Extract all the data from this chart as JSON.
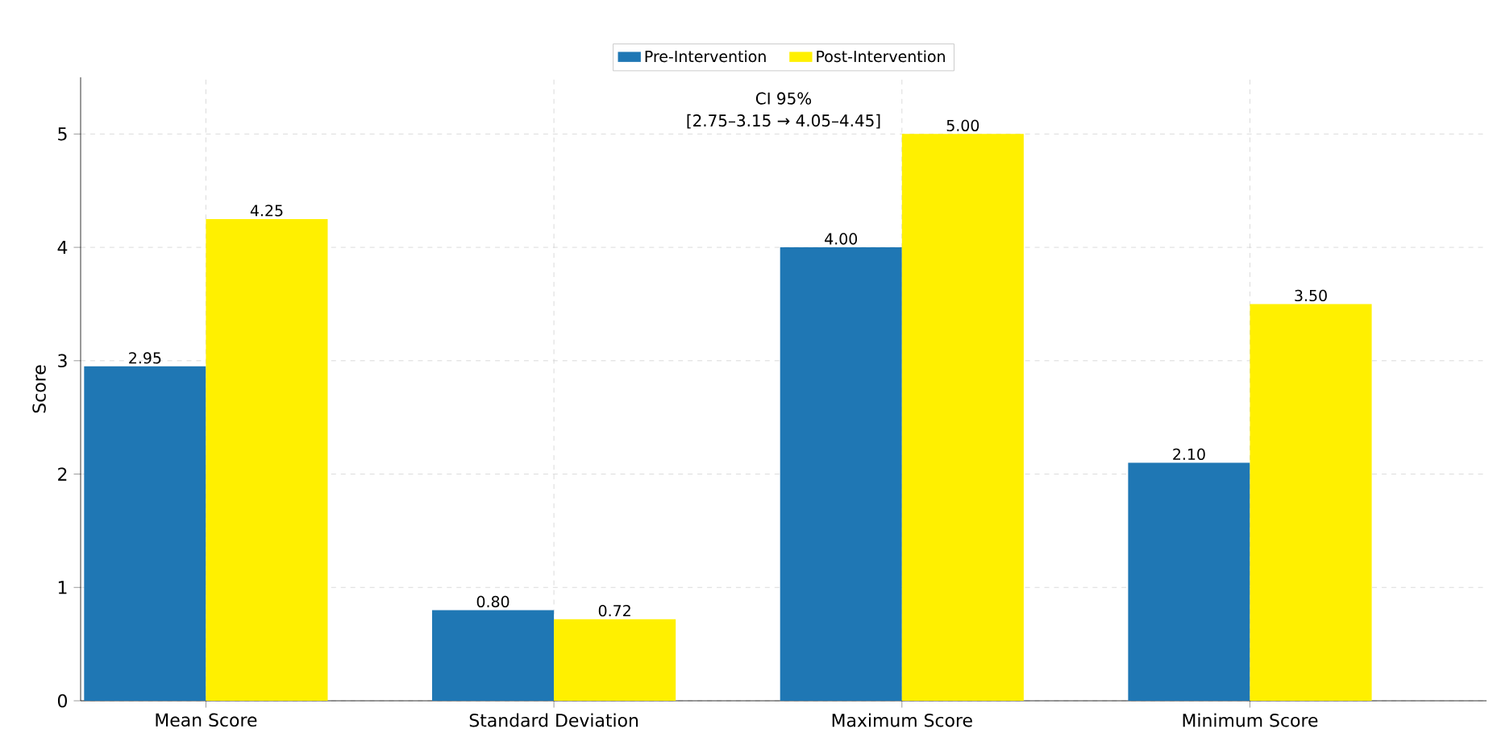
{
  "chart_data": {
    "type": "bar",
    "ylabel": "Score",
    "categories": [
      "Mean Score",
      "Standard Deviation",
      "Maximum Score",
      "Minimum Score"
    ],
    "series": [
      {
        "name": "Pre-Intervention",
        "color": "#1f77b4",
        "values": [
          2.95,
          0.8,
          4.0,
          2.1
        ],
        "value_labels": [
          "2.95",
          "0.80",
          "4.00",
          "2.10"
        ]
      },
      {
        "name": "Post-Intervention",
        "color": "#fff000",
        "values": [
          4.25,
          0.72,
          5.0,
          3.5
        ],
        "value_labels": [
          "4.25",
          "0.72",
          "5.00",
          "3.50"
        ]
      }
    ],
    "annotations": [
      "CI 95%",
      "[2.75–3.15 → 4.05–4.45]"
    ],
    "ylim": [
      0,
      5.5
    ],
    "yticks": [
      0,
      1,
      2,
      3,
      4,
      5
    ],
    "grid": true,
    "legend": "top"
  }
}
